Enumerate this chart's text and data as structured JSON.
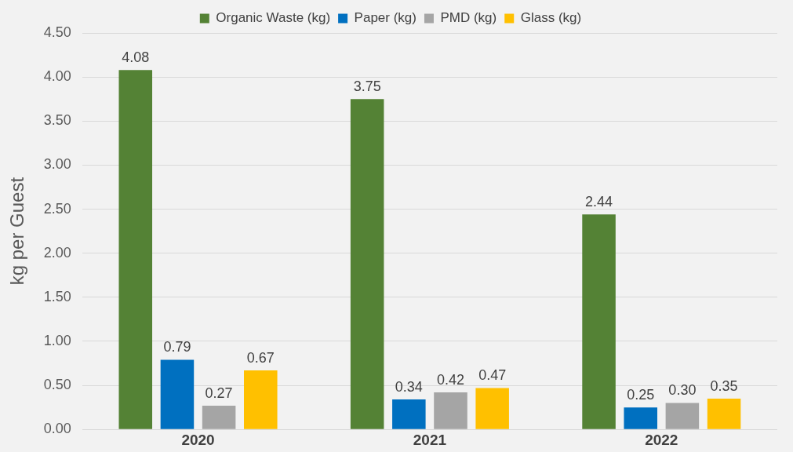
{
  "chart_data": {
    "type": "bar",
    "categories": [
      "2020",
      "2021",
      "2022"
    ],
    "ylabel": "kg per Guest",
    "series": [
      {
        "name": "Organic Waste (kg)",
        "color": "#548235",
        "values": [
          4.08,
          3.75,
          2.44
        ],
        "value_labels": [
          "4.08",
          "3.75",
          "2.44"
        ]
      },
      {
        "name": "Paper (kg)",
        "color": "#0070c0",
        "values": [
          0.79,
          0.34,
          0.25
        ],
        "value_labels": [
          "0.79",
          "0.34",
          "0.25"
        ]
      },
      {
        "name": "PMD (kg)",
        "color": "#a5a5a5",
        "values": [
          0.27,
          0.42,
          0.3
        ],
        "value_labels": [
          "0.27",
          "0.42",
          "0.30"
        ]
      },
      {
        "name": "Glass (kg)",
        "color": "#ffc000",
        "values": [
          0.67,
          0.47,
          0.35
        ],
        "value_labels": [
          "0.67",
          "0.47",
          "0.35"
        ]
      }
    ],
    "ylim": [
      0,
      4.5
    ],
    "yticks": [
      {
        "value": 0,
        "label": "0.00"
      },
      {
        "value": 0.5,
        "label": "0.50"
      },
      {
        "value": 1,
        "label": "1.00"
      },
      {
        "value": 1.5,
        "label": "1.50"
      },
      {
        "value": 2,
        "label": "2.00"
      },
      {
        "value": 2.5,
        "label": "2.50"
      },
      {
        "value": 3,
        "label": "3.00"
      },
      {
        "value": 3.5,
        "label": "3.50"
      },
      {
        "value": 4,
        "label": "4.00"
      },
      {
        "value": 4.5,
        "label": "4.50"
      }
    ],
    "grid": "y",
    "legend": "top"
  }
}
